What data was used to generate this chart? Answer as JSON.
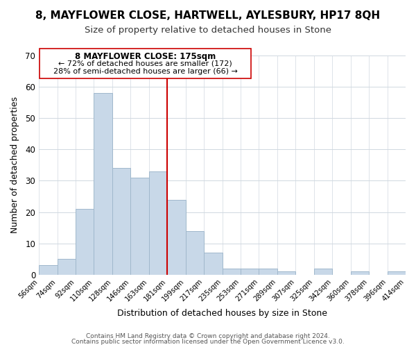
{
  "title": "8, MAYFLOWER CLOSE, HARTWELL, AYLESBURY, HP17 8QH",
  "subtitle": "Size of property relative to detached houses in Stone",
  "xlabel": "Distribution of detached houses by size in Stone",
  "ylabel": "Number of detached properties",
  "footer_line1": "Contains HM Land Registry data © Crown copyright and database right 2024.",
  "footer_line2": "Contains public sector information licensed under the Open Government Licence v3.0.",
  "bin_edges": [
    "56sqm",
    "74sqm",
    "92sqm",
    "110sqm",
    "128sqm",
    "146sqm",
    "163sqm",
    "181sqm",
    "199sqm",
    "217sqm",
    "235sqm",
    "253sqm",
    "271sqm",
    "289sqm",
    "307sqm",
    "325sqm",
    "342sqm",
    "360sqm",
    "378sqm",
    "396sqm",
    "414sqm"
  ],
  "bar_heights": [
    3,
    5,
    21,
    58,
    34,
    31,
    33,
    24,
    14,
    7,
    2,
    2,
    2,
    1,
    0,
    2,
    0,
    1,
    0,
    1
  ],
  "bar_color": "#c8d8e8",
  "bar_edge_color": "#a0b8cc",
  "vline_x": 7,
  "vline_color": "#cc0000",
  "ylim": [
    0,
    70
  ],
  "yticks": [
    0,
    10,
    20,
    30,
    40,
    50,
    60,
    70
  ],
  "annotation_title": "8 MAYFLOWER CLOSE: 175sqm",
  "annotation_line1": "← 72% of detached houses are smaller (172)",
  "annotation_line2": "28% of semi-detached houses are larger (66) →"
}
